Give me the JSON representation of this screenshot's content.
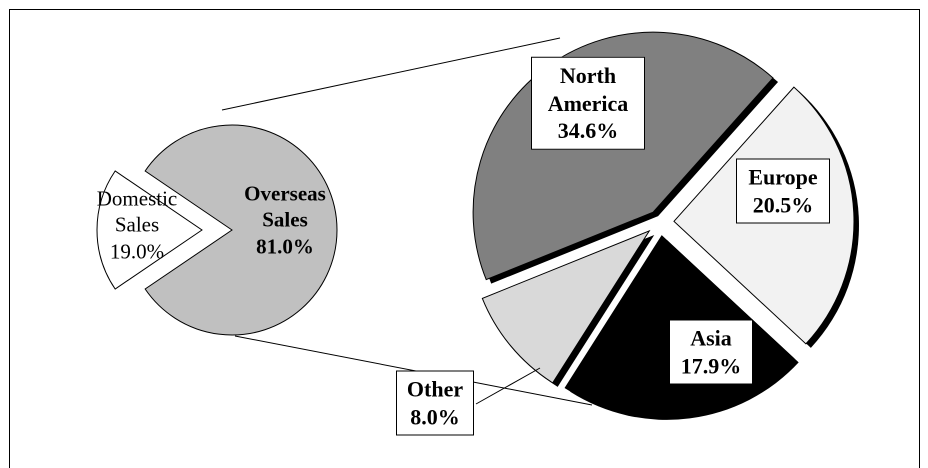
{
  "chart_data": [
    {
      "type": "pie",
      "categories": [
        "Domestic Sales",
        "Overseas Sales"
      ],
      "values": [
        19,
        81
      ],
      "value_labels": [
        "19.0%",
        "81.0%"
      ],
      "colors": [
        "#ffffff",
        "#c0c0c0"
      ]
    },
    {
      "type": "pie",
      "categories": [
        "North America",
        "Europe",
        "Asia",
        "Other"
      ],
      "values": [
        34.6,
        20.5,
        17.9,
        8
      ],
      "value_labels": [
        "34.6%",
        "20.5%",
        "17.9%",
        "8.0%"
      ],
      "colors": [
        "#808080",
        "#f2f2f2",
        "#000000",
        "#d9d9d9"
      ]
    }
  ]
}
